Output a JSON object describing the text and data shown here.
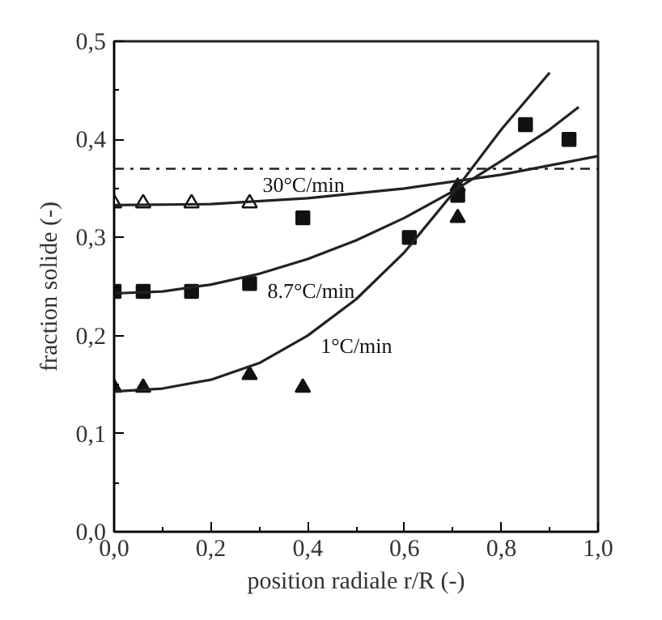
{
  "chart_data": {
    "type": "scatter",
    "xlabel": "position radiale r/R (-)",
    "ylabel": "fraction solide (-)",
    "xlim": [
      0,
      1
    ],
    "ylim": [
      0,
      0.5
    ],
    "xticks": [
      {
        "value": 0,
        "label": "0,0"
      },
      {
        "value": 0.2,
        "label": "0,2"
      },
      {
        "value": 0.4,
        "label": "0,4"
      },
      {
        "value": 0.6,
        "label": "0,6"
      },
      {
        "value": 0.8,
        "label": "0,8"
      },
      {
        "value": 1,
        "label": "1,0"
      }
    ],
    "yticks": [
      {
        "value": 0,
        "label": "0,0"
      },
      {
        "value": 0.1,
        "label": "0,1"
      },
      {
        "value": 0.2,
        "label": "0,2"
      },
      {
        "value": 0.3,
        "label": "0,3"
      },
      {
        "value": 0.4,
        "label": "0,4"
      },
      {
        "value": 0.5,
        "label": "0,5"
      }
    ],
    "grid": false,
    "series": [
      {
        "marker": "triangle",
        "color": "#ffffff",
        "x": [
          0,
          0.06,
          0.16,
          0.28
        ],
        "values": [
          0.335,
          0.335,
          0.335,
          0.335
        ]
      },
      {
        "marker": "square",
        "color": "#111111",
        "x": [
          0,
          0.06,
          0.16,
          0.28,
          0.39,
          0.61,
          0.71,
          0.85,
          0.94
        ],
        "values": [
          0.245,
          0.245,
          0.245,
          0.253,
          0.32,
          0.3,
          0.343,
          0.415,
          0.4
        ]
      },
      {
        "marker": "triangle",
        "color": "#111111",
        "x": [
          0,
          0.06,
          0.28,
          0.39,
          0.71,
          0.71
        ],
        "values": [
          0.147,
          0.147,
          0.16,
          0.147,
          0.32,
          0.352
        ]
      },
      {
        "type": "line",
        "marker": "none",
        "color": "#222222",
        "x": [
          0,
          0.2,
          0.4,
          0.6,
          0.8,
          1.0
        ],
        "values": [
          0.333,
          0.334,
          0.34,
          0.35,
          0.364,
          0.383
        ]
      },
      {
        "type": "line",
        "marker": "none",
        "color": "#222222",
        "x": [
          0,
          0.1,
          0.2,
          0.3,
          0.4,
          0.5,
          0.6,
          0.7,
          0.8,
          0.9,
          0.96
        ],
        "values": [
          0.243,
          0.245,
          0.252,
          0.263,
          0.278,
          0.297,
          0.32,
          0.347,
          0.378,
          0.41,
          0.433
        ]
      },
      {
        "type": "line",
        "marker": "none",
        "color": "#222222",
        "x": [
          0,
          0.1,
          0.2,
          0.3,
          0.4,
          0.5,
          0.6,
          0.7,
          0.8,
          0.9
        ],
        "values": [
          0.143,
          0.146,
          0.155,
          0.172,
          0.2,
          0.237,
          0.285,
          0.345,
          0.41,
          0.468
        ]
      }
    ],
    "ref_lines": [
      {
        "axis": "y",
        "value": 0.37,
        "label": null,
        "color": "#222222",
        "line_style": "dashdot"
      }
    ],
    "annotations": [
      {
        "text": "30°C/min",
        "x": 0.3,
        "y": 0.3365
      },
      {
        "text": "8.7°C/min",
        "x": 0.31,
        "y": 0.265
      },
      {
        "text": "1°C/min",
        "x": 0.42,
        "y": 0.209
      }
    ]
  }
}
